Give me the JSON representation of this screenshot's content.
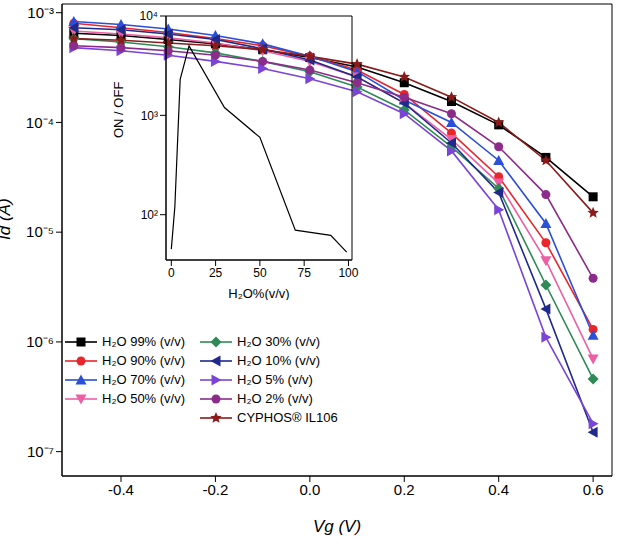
{
  "chart_data": [
    {
      "type": "line",
      "xlabel": "Vg (V)",
      "ylabel": "Id (A)",
      "log": "y",
      "legend": "lower left",
      "x": [
        -0.5,
        -0.4,
        -0.3,
        -0.2,
        -0.1,
        0,
        0.1,
        0.2,
        0.3,
        0.4,
        0.5,
        0.6
      ],
      "xlim": [
        -0.525,
        0.64
      ],
      "xticks": [
        -0.4,
        -0.2,
        {
          "value": 0,
          "label": "0.0"
        },
        0.2,
        0.4,
        0.6
      ],
      "ylim": [
        6e-08,
        0.0012
      ],
      "yticks": [
        {
          "value": 1e-07,
          "label": "10⁻⁷"
        },
        {
          "value": 1e-06,
          "label": "10⁻⁶"
        },
        {
          "value": 1e-05,
          "label": "10⁻⁵"
        },
        {
          "value": 0.0001,
          "label": "10⁻⁴"
        },
        {
          "value": 0.001,
          "label": "10⁻³"
        }
      ],
      "series": [
        {
          "name": "H₂O 99% (v/v)",
          "color": "#000000",
          "marker": "square",
          "values": [
            0.00065,
            0.00062,
            0.00057,
            0.00052,
            0.00046,
            0.00039,
            0.00032,
            0.00023,
            0.000155,
            9.5e-05,
            4.8e-05,
            2.1e-05
          ]
        },
        {
          "name": "H₂O 90% (v/v)",
          "color": "#e8262b",
          "marker": "circle",
          "values": [
            0.0008,
            0.00073,
            0.00066,
            0.00058,
            0.0005,
            0.0004,
            0.0003,
            0.00018,
            8e-05,
            3.2e-05,
            8e-06,
            1.3e-06
          ]
        },
        {
          "name": "H₂O 70% (v/v)",
          "color": "#2a4fd8",
          "marker": "triangle-up",
          "values": [
            0.00083,
            0.00078,
            0.00071,
            0.00062,
            0.00052,
            0.0004,
            0.00029,
            0.00016,
            0.0001,
            4.5e-05,
            1.2e-05,
            1.15e-06
          ]
        },
        {
          "name": "H₂O 50% (v/v)",
          "color": "#ec5fa4",
          "marker": "triangle-down",
          "values": [
            0.00068,
            0.00064,
            0.00059,
            0.00053,
            0.00045,
            0.00036,
            0.00026,
            0.00015,
            7e-05,
            2.8e-05,
            5.5e-06,
            7e-07
          ]
        },
        {
          "name": "H₂O 30% (v/v)",
          "color": "#2e8b57",
          "marker": "diamond",
          "values": [
            0.00058,
            0.00054,
            0.00049,
            0.00043,
            0.00036,
            0.00029,
            0.00021,
            0.00013,
            6e-05,
            2.5e-05,
            3.3e-06,
            4.6e-07
          ]
        },
        {
          "name": "H₂O 10% (v/v)",
          "color": "#1f2a8a",
          "marker": "triangle-left",
          "values": [
            0.00073,
            0.0007,
            0.00064,
            0.00057,
            0.00047,
            0.00037,
            0.00026,
            0.00015,
            6.5e-05,
            2.3e-05,
            2e-06,
            1.5e-07
          ]
        },
        {
          "name": "H₂O 5% (v/v)",
          "color": "#7b44d8",
          "marker": "triangle-right",
          "values": [
            0.00048,
            0.00045,
            0.00041,
            0.00036,
            0.00031,
            0.00025,
            0.00019,
            0.00012,
            5.5e-05,
            1.6e-05,
            1.1e-06,
            1.8e-07
          ]
        },
        {
          "name": "H₂O 2% (v/v)",
          "color": "#8b2c8b",
          "marker": "circle",
          "values": [
            0.0005,
            0.00048,
            0.00045,
            0.00041,
            0.00036,
            0.0003,
            0.00023,
            0.00017,
            0.00012,
            6e-05,
            2.2e-05,
            3.8e-06
          ]
        },
        {
          "name": "CYPHOS® IL106",
          "color": "#8b1a1a",
          "marker": "star",
          "values": [
            0.00058,
            0.00056,
            0.00053,
            0.0005,
            0.00046,
            0.0004,
            0.00034,
            0.00026,
            0.00017,
            0.0001,
            4.5e-05,
            1.5e-05
          ]
        }
      ]
    },
    {
      "type": "line",
      "xlabel": "H₂O%(v/v)",
      "ylabel": "ON / OFF",
      "log": "y",
      "color": "#000000",
      "marker": "none",
      "x": [
        0,
        2,
        5,
        10,
        30,
        50,
        70,
        90,
        99
      ],
      "values": [
        45,
        120,
        2300,
        5000,
        1200,
        600,
        70,
        62,
        42
      ],
      "xlim": [
        -3,
        102
      ],
      "xticks": [
        0,
        25,
        50,
        75,
        100
      ],
      "ylim": [
        35,
        10000
      ],
      "yticks": [
        {
          "value": 100,
          "label": "10²"
        },
        {
          "value": 1000,
          "label": "10³"
        },
        {
          "value": 10000,
          "label": "10⁴"
        }
      ]
    }
  ]
}
